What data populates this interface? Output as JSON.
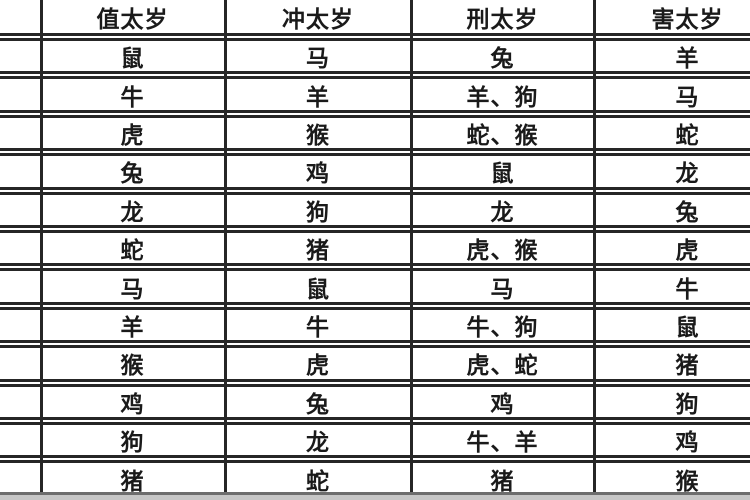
{
  "table": {
    "headers": [
      "值太岁",
      "冲太岁",
      "刑太岁",
      "害太岁"
    ],
    "rows": [
      {
        "cells": [
          "鼠",
          "马",
          "兔",
          "羊"
        ]
      },
      {
        "cells": [
          "牛",
          "羊",
          "羊、狗",
          "马"
        ]
      },
      {
        "cells": [
          "虎",
          "猴",
          "蛇、猴",
          "蛇"
        ]
      },
      {
        "cells": [
          "兔",
          "鸡",
          "鼠",
          "龙"
        ]
      },
      {
        "cells": [
          "龙",
          "狗",
          "龙",
          "兔"
        ]
      },
      {
        "cells": [
          "蛇",
          "猪",
          "虎、猴",
          "虎"
        ]
      },
      {
        "cells": [
          "马",
          "鼠",
          "马",
          "牛"
        ]
      },
      {
        "cells": [
          "羊",
          "牛",
          "牛、狗",
          "鼠"
        ]
      },
      {
        "cells": [
          "猴",
          "虎",
          "虎、蛇",
          "猪"
        ]
      },
      {
        "cells": [
          "鸡",
          "兔",
          "鸡",
          "狗"
        ]
      },
      {
        "cells": [
          "狗",
          "龙",
          "牛、羊",
          "鸡"
        ]
      },
      {
        "cells": [
          "猪",
          "蛇",
          "猪",
          "猴"
        ]
      }
    ]
  },
  "colors": {
    "grid-line": "#262626",
    "text": "#1a1a1a",
    "bottom-line": "#6d6d6d",
    "bottom-band": "#c6c6c6",
    "background": "#ffffff"
  }
}
